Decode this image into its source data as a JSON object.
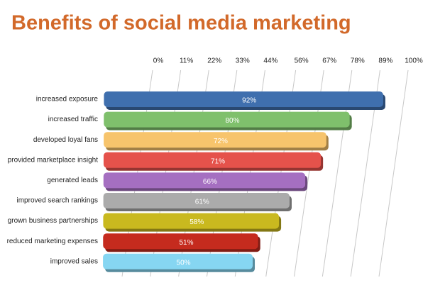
{
  "chart_data": {
    "type": "bar",
    "orientation": "horizontal",
    "title": "Benefits of social media marketing",
    "categories": [
      "increased exposure",
      "increased traffic",
      "developed loyal fans",
      "provided marketplace insight",
      "generated leads",
      "improved search rankings",
      "grown business partnerships",
      "reduced marketing expenses",
      "improved sales"
    ],
    "values": [
      92,
      80,
      72,
      71,
      66,
      61,
      58,
      51,
      50
    ],
    "value_labels": [
      "92%",
      "80%",
      "72%",
      "71%",
      "66%",
      "61%",
      "58%",
      "51%",
      "50%"
    ],
    "colors": [
      "#3f6fae",
      "#7fc06c",
      "#f7c46c",
      "#e5524b",
      "#a56fc1",
      "#ababab",
      "#c9b91f",
      "#c52b1e",
      "#86d6f2"
    ],
    "xlim": [
      0,
      100
    ],
    "xticks": [
      {
        "value": 0,
        "label": "0%"
      },
      {
        "value": 11,
        "label": "11%"
      },
      {
        "value": 22,
        "label": "22%"
      },
      {
        "value": 33,
        "label": "33%"
      },
      {
        "value": 44,
        "label": "44%"
      },
      {
        "value": 56,
        "label": "56%"
      },
      {
        "value": 67,
        "label": "67%"
      },
      {
        "value": 78,
        "label": "78%"
      },
      {
        "value": 89,
        "label": "89%"
      },
      {
        "value": 100,
        "label": "100%"
      }
    ],
    "grid": true
  }
}
